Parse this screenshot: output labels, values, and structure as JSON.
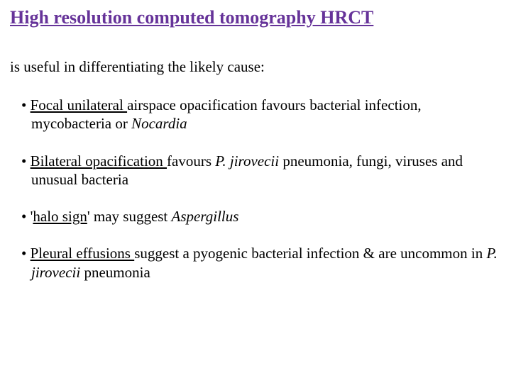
{
  "title_color": "#663399",
  "text_color": "#000000",
  "background_color": "#ffffff",
  "font_family": "Times New Roman",
  "title_fontsize": 26,
  "body_fontsize": 21,
  "title": "High resolution computed tomography HRCT",
  "intro": "is useful in differentiating the likely cause:",
  "bullets": {
    "b0": {
      "lead_u": "Focal unilateral ",
      "mid": "airspace opacification favours bacterial infection, mycobacteria or ",
      "tail_i": "Nocardia"
    },
    "b1": {
      "lead_u": "Bilateral opacification ",
      "mid1": "favours ",
      "mid_i": "P. jirovecii",
      "mid2": " pneumonia, fungi, viruses and unusual bacteria"
    },
    "b2": {
      "pre": "'",
      "lead_u": "halo sign",
      "mid": "' may suggest ",
      "tail_i": "Aspergillus"
    },
    "b3": {
      "lead_u": "Pleural effusions ",
      "mid1": "suggest a pyogenic bacterial infection & are uncommon in ",
      "mid_i": "P. jirovecii ",
      "mid2": " pneumonia"
    }
  }
}
